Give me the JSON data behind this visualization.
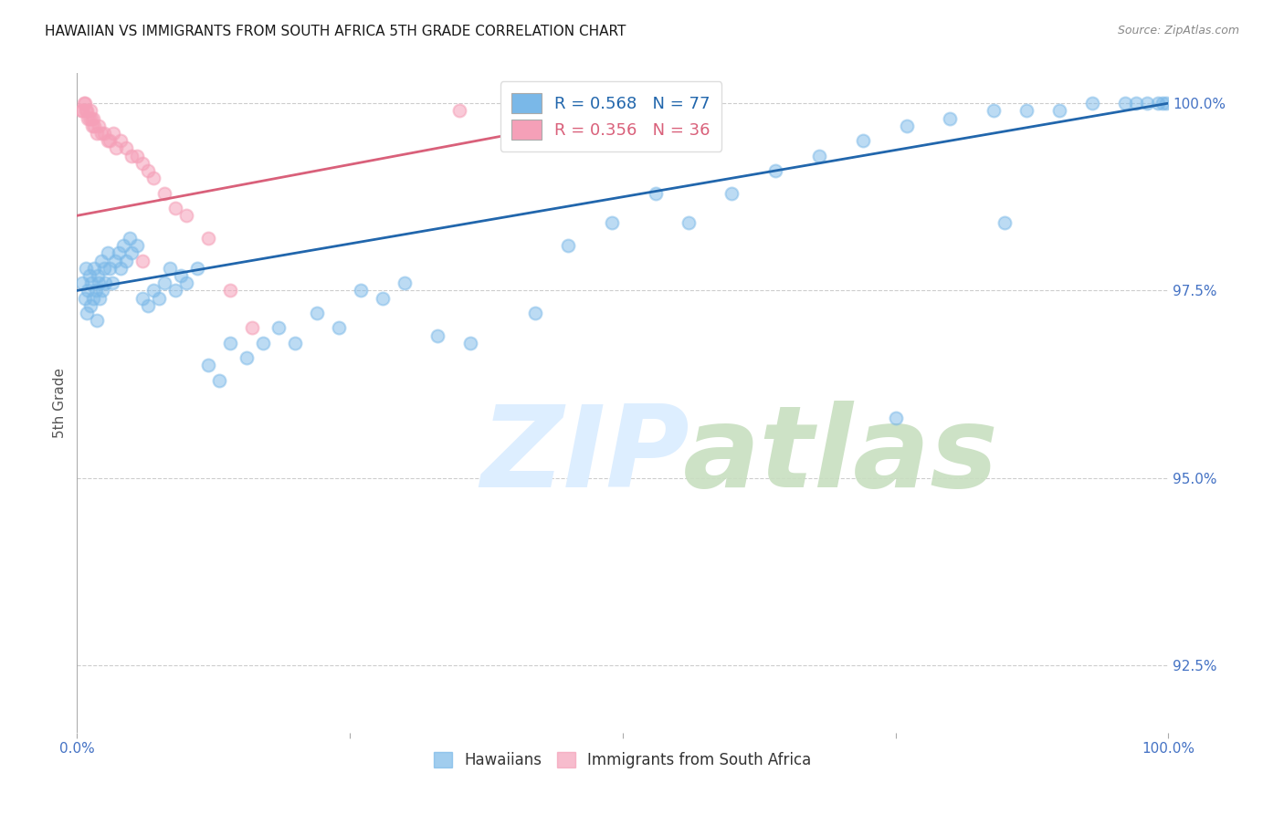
{
  "title": "HAWAIIAN VS IMMIGRANTS FROM SOUTH AFRICA 5TH GRADE CORRELATION CHART",
  "source": "Source: ZipAtlas.com",
  "ylabel": "5th Grade",
  "x_min": 0.0,
  "x_max": 1.0,
  "y_min": 0.916,
  "y_max": 1.004,
  "y_ticks": [
    0.925,
    0.95,
    0.975,
    1.0
  ],
  "y_tick_labels": [
    "92.5%",
    "95.0%",
    "97.5%",
    "100.0%"
  ],
  "blue_R": 0.568,
  "blue_N": 77,
  "pink_R": 0.356,
  "pink_N": 36,
  "blue_color": "#7ab8e8",
  "pink_color": "#f5a0b8",
  "blue_line_color": "#2166ac",
  "pink_line_color": "#d9607a",
  "axis_label_color": "#4472c4",
  "grid_color": "#c8c8c8",
  "blue_line_start_y": 0.975,
  "blue_line_end_y": 1.0,
  "pink_line_start_y": 0.985,
  "pink_line_end_y": 1.0,
  "blue_scatter_x": [
    0.005,
    0.007,
    0.008,
    0.009,
    0.01,
    0.011,
    0.012,
    0.013,
    0.015,
    0.016,
    0.017,
    0.018,
    0.019,
    0.02,
    0.021,
    0.022,
    0.023,
    0.025,
    0.026,
    0.028,
    0.03,
    0.032,
    0.035,
    0.038,
    0.04,
    0.042,
    0.045,
    0.048,
    0.05,
    0.055,
    0.06,
    0.065,
    0.07,
    0.075,
    0.08,
    0.085,
    0.09,
    0.095,
    0.1,
    0.11,
    0.12,
    0.13,
    0.14,
    0.155,
    0.17,
    0.185,
    0.2,
    0.22,
    0.24,
    0.26,
    0.28,
    0.3,
    0.33,
    0.36,
    0.42,
    0.45,
    0.49,
    0.53,
    0.56,
    0.6,
    0.64,
    0.68,
    0.72,
    0.76,
    0.8,
    0.84,
    0.87,
    0.9,
    0.93,
    0.96,
    0.97,
    0.98,
    0.99,
    0.995,
    0.998,
    0.85,
    0.75
  ],
  "blue_scatter_y": [
    0.976,
    0.974,
    0.978,
    0.972,
    0.975,
    0.977,
    0.973,
    0.976,
    0.974,
    0.978,
    0.975,
    0.971,
    0.977,
    0.976,
    0.974,
    0.979,
    0.975,
    0.978,
    0.976,
    0.98,
    0.978,
    0.976,
    0.979,
    0.98,
    0.978,
    0.981,
    0.979,
    0.982,
    0.98,
    0.981,
    0.974,
    0.973,
    0.975,
    0.974,
    0.976,
    0.978,
    0.975,
    0.977,
    0.976,
    0.978,
    0.965,
    0.963,
    0.968,
    0.966,
    0.968,
    0.97,
    0.968,
    0.972,
    0.97,
    0.975,
    0.974,
    0.976,
    0.969,
    0.968,
    0.972,
    0.981,
    0.984,
    0.988,
    0.984,
    0.988,
    0.991,
    0.993,
    0.995,
    0.997,
    0.998,
    0.999,
    0.999,
    0.999,
    1.0,
    1.0,
    1.0,
    1.0,
    1.0,
    1.0,
    1.0,
    0.984,
    0.958
  ],
  "pink_scatter_x": [
    0.004,
    0.005,
    0.006,
    0.007,
    0.008,
    0.009,
    0.01,
    0.011,
    0.012,
    0.013,
    0.014,
    0.015,
    0.016,
    0.018,
    0.02,
    0.022,
    0.025,
    0.028,
    0.03,
    0.033,
    0.036,
    0.04,
    0.045,
    0.05,
    0.055,
    0.06,
    0.065,
    0.07,
    0.08,
    0.09,
    0.1,
    0.12,
    0.14,
    0.16,
    0.35,
    0.06
  ],
  "pink_scatter_y": [
    0.999,
    0.999,
    1.0,
    1.0,
    0.999,
    0.999,
    0.998,
    0.998,
    0.999,
    0.998,
    0.997,
    0.998,
    0.997,
    0.996,
    0.997,
    0.996,
    0.996,
    0.995,
    0.995,
    0.996,
    0.994,
    0.995,
    0.994,
    0.993,
    0.993,
    0.992,
    0.991,
    0.99,
    0.988,
    0.986,
    0.985,
    0.982,
    0.975,
    0.97,
    0.999,
    0.979
  ]
}
